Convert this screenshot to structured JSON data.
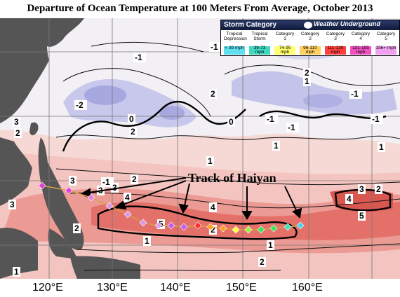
{
  "title": "Departure of Ocean Temperature at 100 Meters From Average, October 2013",
  "legend": {
    "title": "Storm Category",
    "logo": "Weather Underground",
    "logo_sub": "wunderground.com",
    "categories": [
      {
        "label": "Tropical Depression",
        "range": "< 39 mph",
        "color": "#5ee0f0"
      },
      {
        "label": "Tropical Storm",
        "range": "39-73 mph",
        "color": "#40d8c0"
      },
      {
        "label": "Category 1",
        "range": "74-95 mph",
        "color": "#ffff70"
      },
      {
        "label": "Category 2",
        "range": "96-110 mph",
        "color": "#ffd060"
      },
      {
        "label": "Category 3",
        "range": "111-130 mph",
        "color": "#ff4040"
      },
      {
        "label": "Category 4",
        "range": "131-155 mph",
        "color": "#f050c0"
      },
      {
        "label": "Category 5",
        "range": "156+ mph",
        "color": "#f0a0f0"
      }
    ]
  },
  "annotation": "Track of Haiyan",
  "x_ticks": [
    "120°E",
    "130°E",
    "140°E",
    "150°E",
    "160°E"
  ],
  "contour_labels": [
    "-1",
    "-1",
    "-1",
    "-2",
    "0",
    "2",
    "-1",
    "-1",
    "1",
    "0",
    "-1",
    "-1",
    "1",
    "2",
    "3",
    "2",
    "-1",
    "3",
    "1",
    "2",
    "1",
    "4",
    "3",
    "5",
    "2",
    "4",
    "4",
    "5",
    "3",
    "2",
    "3",
    "3",
    "1",
    "2",
    "2",
    "1",
    "2",
    "1"
  ],
  "track_colors": [
    "#e040e0",
    "#e080e0",
    "#d898e8",
    "#d898e8",
    "#e0a0f0",
    "#c060f0",
    "#ff3030",
    "#ffa020",
    "#ffff40",
    "#a0f040",
    "#40e060",
    "#40e0c0",
    "#40d8f0"
  ]
}
